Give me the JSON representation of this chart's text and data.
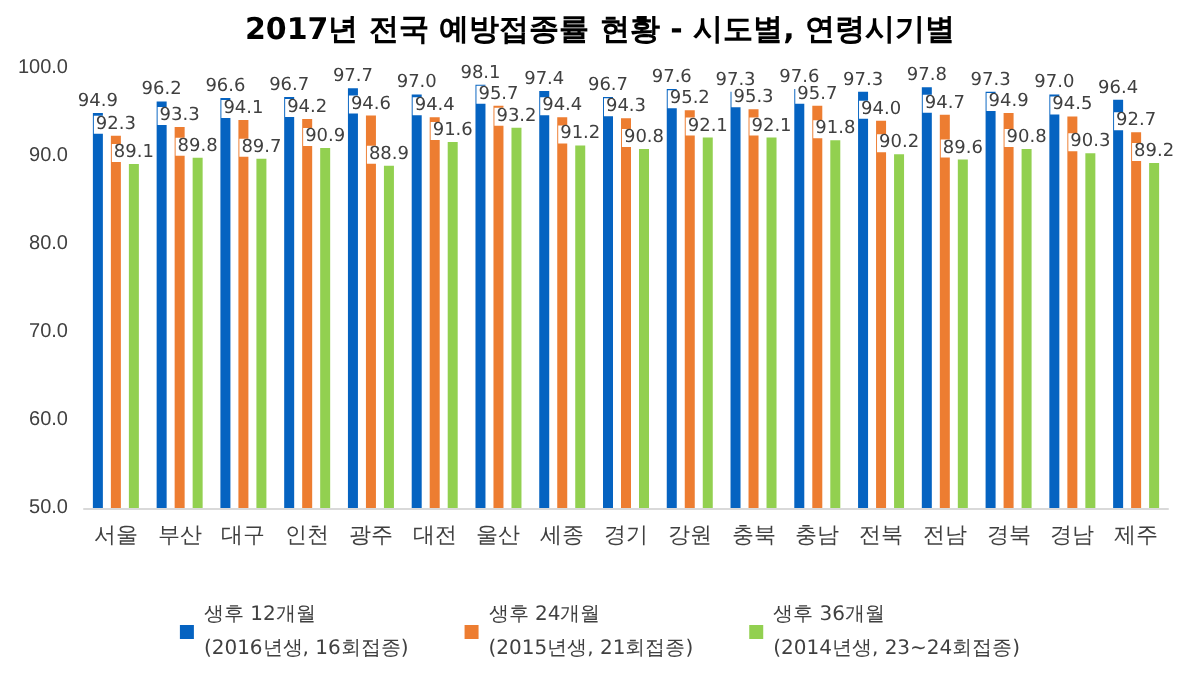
{
  "chart_data": {
    "type": "bar",
    "title": "2017년 전국 예방접종률 현황 - 시도별, 연령시기별",
    "categories": [
      "서울",
      "부산",
      "대구",
      "인천",
      "광주",
      "대전",
      "울산",
      "세종",
      "경기",
      "강원",
      "충북",
      "충남",
      "전북",
      "전남",
      "경북",
      "경남",
      "제주"
    ],
    "series": [
      {
        "name": "생후 12개월\n(2016년생, 16회접종)",
        "color": "#0563c1",
        "values": [
          94.9,
          96.2,
          96.6,
          96.7,
          97.7,
          97.0,
          98.1,
          97.4,
          96.7,
          97.6,
          97.3,
          97.6,
          97.3,
          97.8,
          97.3,
          97.0,
          96.4
        ],
        "value_labels": [
          "94.9",
          "96.2",
          "96.6",
          "96.7",
          "97.7",
          "97.0",
          "98.1",
          "97.4",
          "96.7",
          "97.6",
          "97.3",
          "97.6",
          "97.3",
          "97.8",
          "97.3",
          "97.0",
          "96.4"
        ]
      },
      {
        "name": "생후 24개월\n(2015년생, 21회접종)",
        "color": "#ed7d31",
        "values": [
          92.3,
          93.3,
          94.1,
          94.2,
          94.6,
          94.4,
          95.7,
          94.4,
          94.3,
          95.2,
          95.3,
          95.7,
          94.0,
          94.7,
          94.9,
          94.5,
          92.7
        ],
        "value_labels": [
          "92.3",
          "93.3",
          "94.1",
          "94.2",
          "94.6",
          "94.4",
          "95.7",
          "94.4",
          "94.3",
          "95.2",
          "95.3",
          "95.7",
          "94.0",
          "94.7",
          "94.9",
          "94.5",
          "92.7"
        ]
      },
      {
        "name": "생후 36개월\n(2014년생, 23~24회접종)",
        "color": "#92d050",
        "values": [
          89.1,
          89.8,
          89.7,
          90.9,
          88.9,
          91.6,
          93.2,
          91.2,
          90.8,
          92.1,
          92.1,
          91.8,
          90.2,
          89.6,
          90.8,
          90.3,
          89.2
        ],
        "value_labels": [
          "89.1",
          "89.8",
          "89.7",
          "90.9",
          "88.9",
          "91.6",
          "93.2",
          "91.2",
          "90.8",
          "92.1",
          "92.1",
          "91.8",
          "90.2",
          "89.6",
          "90.8",
          "90.3",
          "89.2"
        ]
      }
    ],
    "ylim": [
      50,
      100
    ],
    "yticks": [
      {
        "value": 50,
        "label": "50.0"
      },
      {
        "value": 60,
        "label": "60.0"
      },
      {
        "value": 70,
        "label": "70.0"
      },
      {
        "value": 80,
        "label": "80.0"
      },
      {
        "value": 90,
        "label": "90.0"
      },
      {
        "value": 100,
        "label": "100.0"
      }
    ],
    "grid": false,
    "legend": "bottom"
  }
}
